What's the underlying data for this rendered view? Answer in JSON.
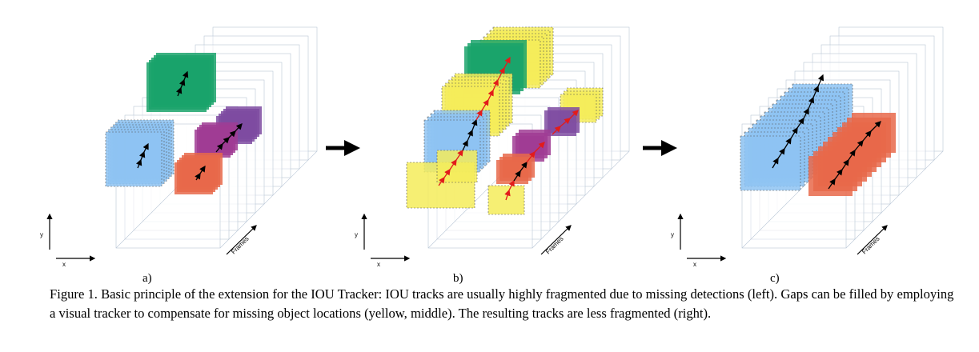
{
  "figure": {
    "panels": [
      {
        "label": "a)",
        "axes": {
          "y": "y",
          "x": "x",
          "frames": "Frames"
        },
        "description_colors": [
          "#1aa36b",
          "#8ec3f2",
          "#7e4ba1",
          "#a03c94",
          "#e8694a"
        ]
      },
      {
        "label": "b)",
        "axes": {
          "y": "y",
          "x": "x",
          "frames": "Frames"
        },
        "highlight_color": "#f4ec5a",
        "arrow_color_tracker": "#e21b1b"
      },
      {
        "label": "c)",
        "axes": {
          "y": "y",
          "x": "x",
          "frames": "Frames"
        }
      }
    ]
  },
  "caption": {
    "text": "Figure 1. Basic principle of the extension for the IOU Tracker: IOU tracks are usually highly fragmented due to missing detections (left). Gaps can be filled by employing a visual tracker to compensate for missing object locations (yellow, middle). The resulting tracks are less fragmented (right)."
  }
}
